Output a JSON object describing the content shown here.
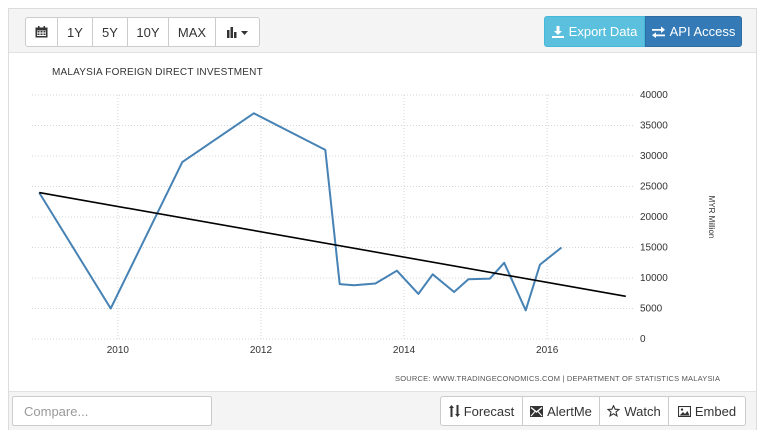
{
  "toolbar": {
    "range_buttons": [
      "1Y",
      "5Y",
      "10Y",
      "MAX"
    ],
    "export_label": "Export Data",
    "api_label": "API Access"
  },
  "chart": {
    "title": "MALAYSIA FOREIGN DIRECT INVESTMENT",
    "source": "SOURCE: WWW.TRADINGECONOMICS.COM | DEPARTMENT OF STATISTICS MALAYSIA"
  },
  "chart_data": {
    "type": "line",
    "title": "MALAYSIA FOREIGN DIRECT INVESTMENT",
    "ylabel": "MYR Million",
    "xlabel": "",
    "ylim": [
      0,
      40000
    ],
    "xlim": [
      2008.8,
      2017.2
    ],
    "yticks": [
      0,
      5000,
      10000,
      15000,
      20000,
      25000,
      30000,
      35000,
      40000
    ],
    "xticks": [
      2010,
      2012,
      2014,
      2016
    ],
    "grid": true,
    "series": [
      {
        "kind": "line",
        "color": "#4682b4",
        "x": [
          2008.9,
          2009.9,
          2010.9,
          2011.9,
          2012.9,
          2013.1,
          2013.3,
          2013.6,
          2013.9,
          2014.2,
          2014.4,
          2014.7,
          2014.9,
          2015.2,
          2015.4,
          2015.7,
          2015.9,
          2016.2
        ],
        "values": [
          24000,
          5000,
          29000,
          37000,
          31000,
          9000,
          8800,
          9100,
          11200,
          7400,
          10600,
          7700,
          9800,
          9900,
          12500,
          4700,
          12200,
          15000
        ]
      },
      {
        "kind": "trend",
        "color": "#000000",
        "x": [
          2008.9,
          2017.1
        ],
        "values": [
          24000,
          7000
        ]
      }
    ]
  },
  "footer": {
    "compare_placeholder": "Compare...",
    "tools": [
      "Forecast",
      "AlertMe",
      "Watch",
      "Embed"
    ]
  }
}
